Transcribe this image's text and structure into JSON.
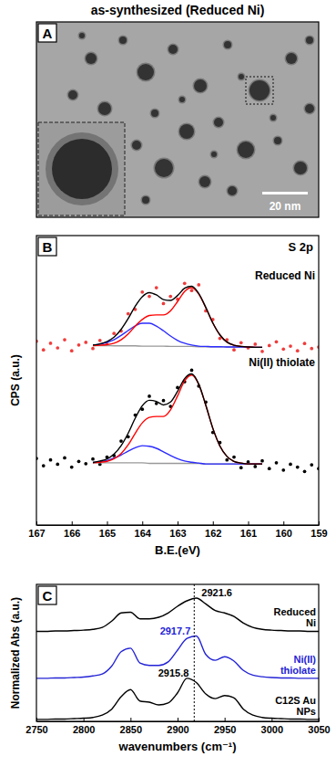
{
  "title": "as-synthesized (Reduced Ni)",
  "chart_data": [
    {
      "type": "image",
      "label": "A",
      "scale_bar": "20 nm"
    },
    {
      "type": "line",
      "label": "B",
      "title": "S 2p",
      "xlabel": "B.E.(eV)",
      "ylabel": "CPS (a.u.)",
      "tick_labels": "x",
      "x": [
        167,
        166.8,
        166.6,
        166.4,
        166.2,
        166,
        165.8,
        165.6,
        165.4,
        165.2,
        165,
        164.8,
        164.6,
        164.4,
        164.2,
        164,
        163.8,
        163.6,
        163.4,
        163.2,
        163,
        162.8,
        162.6,
        162.4,
        162.2,
        162,
        161.8,
        161.6,
        161.4,
        161.2,
        161,
        160.8,
        160.6,
        160.4,
        160.2,
        160,
        159.8,
        159.6,
        159.4,
        159.2,
        159
      ],
      "xlim": [
        167,
        159
      ],
      "xticks": [
        167,
        166,
        165,
        164,
        163,
        162,
        161,
        160,
        159
      ],
      "ylim": [
        0,
        10
      ],
      "series": [
        {
          "name": "Reduced Ni",
          "type": "scatter",
          "marker": "circle",
          "color": "#f03c3c",
          "values": [
            6.35,
            6.05,
            6.28,
            6.12,
            6.4,
            6.02,
            6.22,
            6.31,
            6.1,
            6.38,
            6.25,
            6.62,
            6.7,
            7.3,
            7.45,
            8.05,
            7.9,
            8.2,
            7.65,
            7.9,
            7.8,
            8.35,
            8.1,
            8.3,
            7.4,
            7.1,
            6.45,
            6.4,
            6.05,
            6.3,
            6.12,
            6.25,
            6.0,
            6.2,
            6.33,
            6.08,
            6.18,
            6.02,
            6.27,
            6.1,
            6.15
          ]
        },
        {
          "type": "line",
          "line_style": "solid",
          "color": "#999999",
          "values": [
            null,
            null,
            null,
            null,
            null,
            null,
            null,
            null,
            6.2,
            6.2,
            6.2,
            6.19,
            6.19,
            6.19,
            6.19,
            6.18,
            6.18,
            6.18,
            6.18,
            6.17,
            6.17,
            6.17,
            6.17,
            6.16,
            6.16,
            6.16,
            6.16,
            6.15,
            6.15,
            6.15,
            6.15,
            6.14,
            6.14,
            null,
            null,
            null,
            null,
            null,
            null,
            null,
            null
          ]
        },
        {
          "type": "line",
          "line_style": "solid",
          "color": "#2b2bff",
          "values": [
            null,
            null,
            null,
            null,
            null,
            null,
            null,
            null,
            6.22,
            6.25,
            6.31,
            6.4,
            6.55,
            6.72,
            6.88,
            6.97,
            6.97,
            6.87,
            6.71,
            6.53,
            6.38,
            6.28,
            6.22,
            6.18,
            6.17,
            6.16,
            6.16,
            6.15,
            6.15,
            6.15,
            6.15,
            6.14,
            6.14,
            null,
            null,
            null,
            null,
            null,
            null,
            null,
            null
          ]
        },
        {
          "type": "line",
          "line_style": "solid",
          "color": "#ff0000",
          "values": [
            null,
            null,
            null,
            null,
            null,
            null,
            null,
            null,
            6.2,
            6.21,
            6.23,
            6.28,
            6.4,
            6.6,
            6.87,
            7.1,
            7.24,
            7.26,
            7.26,
            7.4,
            7.72,
            8.07,
            8.2,
            7.98,
            7.51,
            6.98,
            6.57,
            6.32,
            6.21,
            6.17,
            6.15,
            6.14,
            6.14,
            null,
            null,
            null,
            null,
            null,
            null,
            null,
            null
          ]
        },
        {
          "type": "line",
          "line_style": "solid",
          "color": "#000000",
          "values": [
            null,
            null,
            null,
            null,
            null,
            null,
            null,
            null,
            6.22,
            6.26,
            6.34,
            6.49,
            6.76,
            7.13,
            7.56,
            7.89,
            8.03,
            7.95,
            7.79,
            7.76,
            7.93,
            8.18,
            8.25,
            8.0,
            7.52,
            6.98,
            6.57,
            6.32,
            6.21,
            6.17,
            6.15,
            6.14,
            6.14,
            null,
            null,
            null,
            null,
            null,
            null,
            null,
            null
          ]
        },
        {
          "name": "Ni(II) thiolate",
          "type": "scatter",
          "marker": "circle",
          "color": "#000000",
          "values": [
            2.3,
            2.05,
            2.25,
            2.1,
            2.32,
            2.0,
            2.2,
            2.12,
            2.28,
            2.1,
            2.35,
            2.4,
            2.9,
            3.05,
            3.8,
            4.0,
            4.45,
            4.2,
            4.3,
            4.1,
            4.75,
            4.95,
            5.35,
            4.8,
            4.25,
            3.2,
            2.85,
            2.25,
            2.35,
            1.98,
            2.18,
            2.02,
            2.22,
            1.95,
            2.15,
            1.9,
            2.1,
            2.0,
            1.85,
            2.08,
            1.95
          ]
        },
        {
          "type": "line",
          "line_style": "solid",
          "color": "#999999",
          "values": [
            null,
            null,
            null,
            null,
            null,
            null,
            null,
            null,
            2.15,
            2.15,
            2.15,
            2.15,
            2.15,
            2.15,
            2.15,
            2.15,
            2.13,
            2.13,
            2.13,
            2.13,
            2.13,
            2.13,
            2.13,
            2.13,
            2.11,
            2.11,
            2.11,
            2.11,
            2.11,
            2.11,
            2.11,
            2.11,
            2.11,
            null,
            null,
            null,
            null,
            null,
            null,
            null,
            null
          ]
        },
        {
          "type": "line",
          "line_style": "solid",
          "color": "#2b2bff",
          "values": [
            null,
            null,
            null,
            null,
            null,
            null,
            null,
            null,
            2.16,
            2.19,
            2.23,
            2.31,
            2.42,
            2.55,
            2.67,
            2.74,
            2.72,
            2.65,
            2.53,
            2.4,
            2.29,
            2.21,
            2.17,
            2.14,
            2.11,
            2.11,
            2.11,
            2.11,
            2.11,
            2.11,
            2.11,
            2.11,
            2.11,
            null,
            null,
            null,
            null,
            null,
            null,
            null,
            null
          ]
        },
        {
          "type": "line",
          "line_style": "solid",
          "color": "#ff0000",
          "values": [
            null,
            null,
            null,
            null,
            null,
            null,
            null,
            null,
            2.15,
            2.17,
            2.2,
            2.29,
            2.47,
            2.77,
            3.17,
            3.53,
            3.72,
            3.75,
            3.75,
            3.98,
            4.46,
            4.98,
            5.18,
            4.86,
            4.14,
            3.34,
            2.73,
            2.37,
            2.2,
            2.14,
            2.11,
            2.11,
            2.11,
            null,
            null,
            null,
            null,
            null,
            null,
            null,
            null
          ]
        },
        {
          "type": "line",
          "line_style": "solid",
          "color": "#000000",
          "values": [
            null,
            null,
            null,
            null,
            null,
            null,
            null,
            null,
            2.16,
            2.21,
            2.28,
            2.45,
            2.74,
            3.17,
            3.69,
            4.12,
            4.31,
            4.27,
            4.15,
            4.25,
            4.62,
            5.06,
            5.22,
            4.87,
            4.14,
            3.34,
            2.73,
            2.37,
            2.2,
            2.14,
            2.11,
            2.11,
            2.11,
            null,
            null,
            null,
            null,
            null,
            null,
            null,
            null
          ]
        }
      ]
    },
    {
      "type": "line",
      "label": "C",
      "xlabel": "wavenumbers (cm⁻¹)",
      "ylabel": "Normalized Abs (a.u.)",
      "tick_labels": "x",
      "x": [
        2750,
        2760,
        2770,
        2780,
        2790,
        2800,
        2810,
        2820,
        2830,
        2840,
        2850,
        2860,
        2870,
        2880,
        2890,
        2900,
        2910,
        2920,
        2930,
        2940,
        2950,
        2960,
        2970,
        2980,
        2990,
        3000,
        3010,
        3020,
        3030,
        3040,
        3050
      ],
      "xlim": [
        2750,
        3050
      ],
      "xticks": [
        2750,
        2800,
        2850,
        2900,
        2950,
        3000,
        3050
      ],
      "ylim": [
        0,
        3.5
      ],
      "vline": 2917.7,
      "series": [
        {
          "name": "Reduced Ni",
          "color": "#000000",
          "line_style": "solid",
          "peak": 2921.6,
          "values": [
            2.3,
            2.3,
            2.31,
            2.31,
            2.32,
            2.33,
            2.35,
            2.4,
            2.56,
            2.77,
            2.79,
            2.62,
            2.62,
            2.66,
            2.77,
            2.94,
            3.08,
            3.15,
            3.0,
            2.83,
            2.77,
            2.68,
            2.51,
            2.4,
            2.35,
            2.33,
            2.32,
            2.31,
            2.31,
            2.3,
            2.3
          ]
        },
        {
          "name": "Ni(II) thiolate",
          "color": "#2323d6",
          "line_style": "solid",
          "peak": 2917.7,
          "values": [
            1.1,
            1.1,
            1.11,
            1.11,
            1.12,
            1.13,
            1.16,
            1.21,
            1.41,
            1.78,
            1.87,
            1.49,
            1.43,
            1.43,
            1.52,
            1.82,
            2.12,
            2.18,
            1.71,
            1.56,
            1.65,
            1.54,
            1.3,
            1.18,
            1.14,
            1.12,
            1.11,
            1.11,
            1.1,
            1.1,
            1.1
          ]
        },
        {
          "name": "C12S Au NPs",
          "color": "#000000",
          "line_style": "solid",
          "peak": 2915.8,
          "values": [
            0.05,
            0.05,
            0.06,
            0.06,
            0.07,
            0.08,
            0.1,
            0.16,
            0.31,
            0.63,
            0.81,
            0.52,
            0.49,
            0.42,
            0.47,
            0.73,
            1.1,
            0.99,
            0.7,
            0.58,
            0.66,
            0.6,
            0.31,
            0.16,
            0.1,
            0.08,
            0.07,
            0.06,
            0.06,
            0.05,
            0.05
          ]
        }
      ]
    }
  ]
}
